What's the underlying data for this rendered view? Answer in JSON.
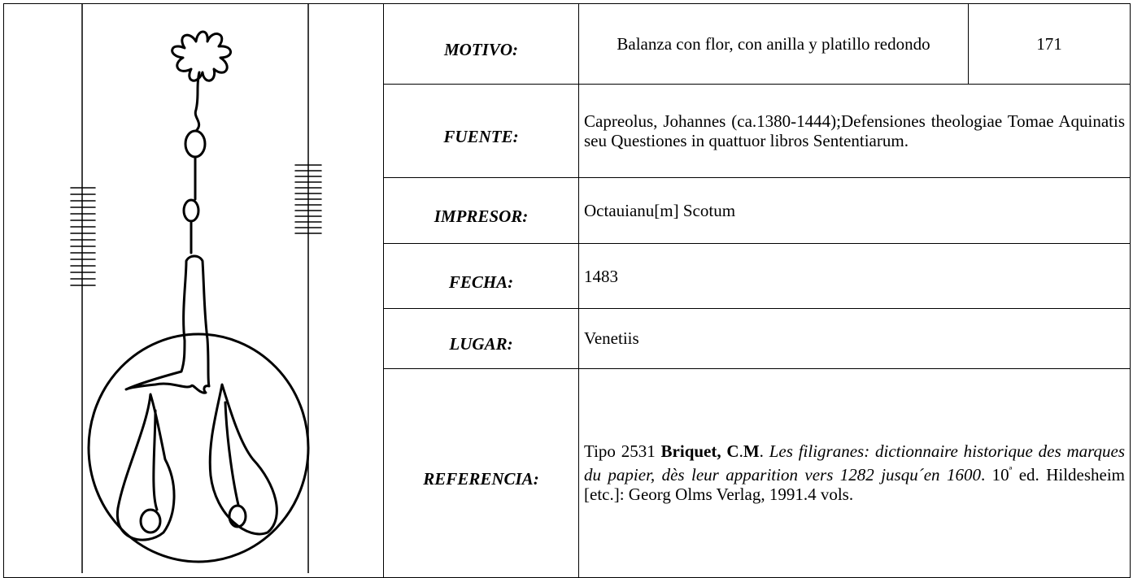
{
  "rows": [
    {
      "label": "MOTIVO:",
      "value": "Balanza con flor, con anilla y platillo redondo",
      "number": "171"
    },
    {
      "label": "FUENTE:",
      "value": "Capreolus, Johannes (ca.1380-1444);Defensiones theologiae Tomae Aquinatis seu Questiones in quattuor libros Sententiarum."
    },
    {
      "label": "IMPRESOR:",
      "value": "Octauianu[m] Scotum"
    },
    {
      "label": "FECHA:",
      "value": "1483"
    },
    {
      "label": "LUGAR:",
      "value": "Venetiis"
    }
  ],
  "reference": {
    "label": "REFERENCIA:",
    "segments": [
      {
        "text": "Tipo 2531 ",
        "style": "normal"
      },
      {
        "text": "Briquet, C",
        "style": "bold"
      },
      {
        "text": ".",
        "style": "normal"
      },
      {
        "text": "M",
        "style": "bold"
      },
      {
        "text": ". ",
        "style": "normal"
      },
      {
        "text": "Les filigranes: dictionnaire historique des marques du papier, dès leur apparition vers 1282 jusqu´en 1600",
        "style": "italic"
      },
      {
        "text": ". 10",
        "style": "normal"
      },
      {
        "text": "ª",
        "style": "sup"
      },
      {
        "text": " ed. Hildesheim [etc.]: Georg Olms Verlag, 1991.4 vols.",
        "style": "normal"
      }
    ]
  }
}
